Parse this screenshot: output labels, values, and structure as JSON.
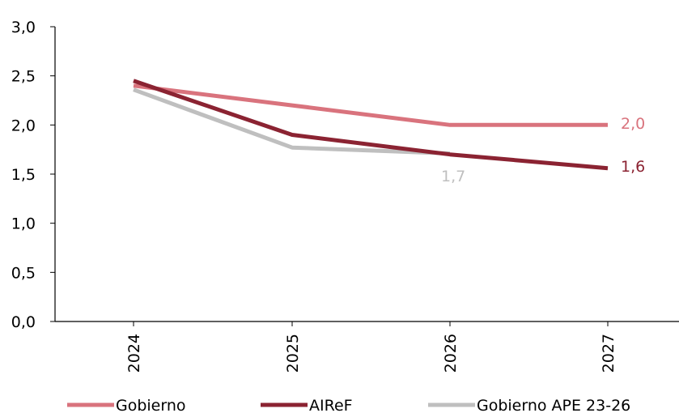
{
  "chart_data": {
    "type": "line",
    "categories": [
      "2024",
      "2025",
      "2026",
      "2027"
    ],
    "ylim": [
      0,
      3.0
    ],
    "yticks": [
      "0,0",
      "0,5",
      "1,0",
      "1,5",
      "2,0",
      "2,5",
      "3,0"
    ],
    "grid": false,
    "legend_position": "bottom",
    "series": [
      {
        "name": "Gobierno",
        "color": "#d9737d",
        "values": [
          2.4,
          2.2,
          2.0,
          2.0
        ],
        "end_label": "2,0"
      },
      {
        "name": "AIReF",
        "color": "#8b2332",
        "values": [
          2.45,
          1.9,
          1.7,
          1.56
        ],
        "end_label": "1,6"
      },
      {
        "name": "Gobierno APE 23-26",
        "color": "#bfbfbf",
        "values": [
          2.36,
          1.77,
          1.71,
          null
        ],
        "end_label": "1,7"
      }
    ]
  }
}
